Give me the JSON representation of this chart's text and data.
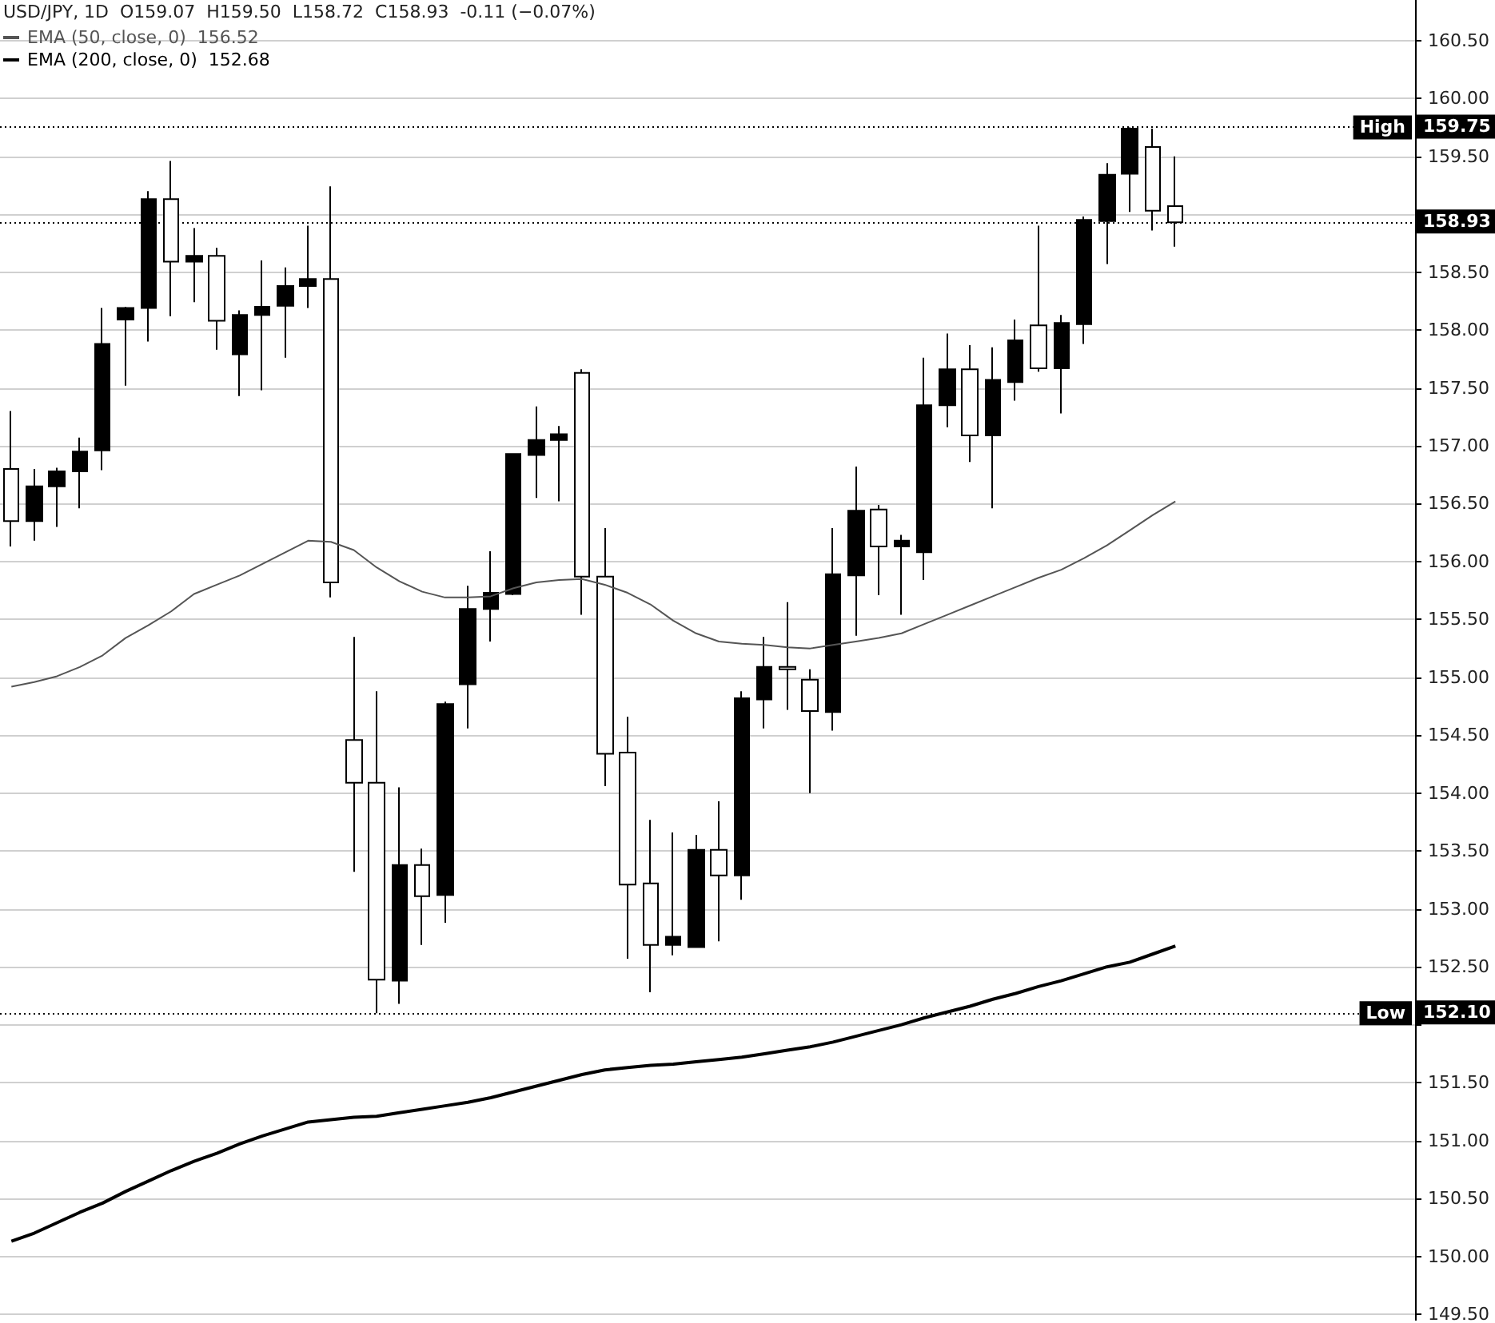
{
  "chart_data": {
    "type": "candlestick",
    "title": "USD/JPY, 1D  O159.07  H159.50  L158.72  C158.93  -0.11 (−0.07%)",
    "categories": [
      null,
      null,
      null,
      null,
      null,
      null,
      null,
      null,
      null,
      null,
      null,
      null,
      null,
      null,
      null,
      null,
      null,
      null,
      null,
      null,
      null,
      null,
      null,
      null,
      null,
      null,
      null,
      null,
      null,
      null,
      null,
      null,
      null,
      null,
      null,
      null,
      null,
      null,
      null,
      null,
      null,
      null,
      null,
      null,
      null,
      null,
      null,
      null,
      null,
      null,
      null,
      null
    ],
    "ohlc": [
      [
        156.8,
        157.3,
        156.13,
        156.35
      ],
      [
        156.35,
        156.8,
        156.18,
        156.65
      ],
      [
        156.65,
        156.81,
        156.3,
        156.78
      ],
      [
        156.78,
        157.07,
        156.46,
        156.95
      ],
      [
        156.96,
        158.19,
        156.79,
        157.88
      ],
      [
        158.09,
        158.2,
        157.52,
        158.19
      ],
      [
        158.19,
        159.2,
        157.9,
        159.13
      ],
      [
        159.13,
        159.46,
        158.12,
        158.59
      ],
      [
        158.59,
        158.88,
        158.24,
        158.64
      ],
      [
        158.64,
        158.71,
        157.83,
        158.08
      ],
      [
        157.79,
        158.17,
        157.43,
        158.13
      ],
      [
        158.13,
        158.6,
        157.48,
        158.2
      ],
      [
        158.21,
        158.54,
        157.76,
        158.38
      ],
      [
        158.38,
        158.9,
        158.19,
        158.44
      ],
      [
        158.44,
        159.24,
        155.69,
        155.82
      ],
      [
        154.46,
        155.35,
        153.32,
        154.09
      ],
      [
        154.09,
        154.88,
        152.1,
        152.39
      ],
      [
        152.38,
        154.05,
        152.18,
        153.38
      ],
      [
        153.38,
        153.52,
        152.69,
        153.11
      ],
      [
        153.12,
        154.79,
        152.88,
        154.77
      ],
      [
        154.94,
        155.79,
        154.56,
        155.59
      ],
      [
        155.59,
        156.09,
        155.31,
        155.73
      ],
      [
        155.72,
        156.93,
        155.71,
        156.93
      ],
      [
        156.92,
        157.34,
        156.55,
        157.05
      ],
      [
        157.05,
        157.17,
        156.52,
        157.1
      ],
      [
        157.63,
        157.66,
        155.54,
        155.87
      ],
      [
        155.87,
        156.29,
        154.06,
        154.34
      ],
      [
        154.35,
        154.66,
        152.57,
        153.21
      ],
      [
        153.22,
        153.77,
        152.28,
        152.69
      ],
      [
        152.69,
        153.66,
        152.6,
        152.76
      ],
      [
        152.67,
        153.64,
        152.67,
        153.51
      ],
      [
        153.51,
        153.93,
        152.72,
        153.29
      ],
      [
        153.29,
        154.88,
        153.08,
        154.82
      ],
      [
        154.81,
        155.35,
        154.56,
        155.09
      ],
      [
        155.09,
        155.65,
        154.72,
        155.07
      ],
      [
        154.98,
        155.07,
        154.0,
        154.71
      ],
      [
        154.7,
        156.29,
        154.54,
        155.89
      ],
      [
        155.88,
        156.82,
        155.36,
        156.44
      ],
      [
        156.45,
        156.49,
        155.71,
        156.13
      ],
      [
        156.13,
        156.23,
        155.54,
        156.18
      ],
      [
        156.08,
        157.76,
        155.84,
        157.35
      ],
      [
        157.35,
        157.97,
        157.16,
        157.66
      ],
      [
        157.66,
        157.87,
        156.86,
        157.09
      ],
      [
        157.09,
        157.85,
        156.46,
        157.57
      ],
      [
        157.55,
        158.09,
        157.39,
        157.91
      ],
      [
        158.04,
        158.9,
        157.64,
        157.67
      ],
      [
        157.67,
        158.13,
        157.28,
        158.06
      ],
      [
        158.05,
        158.98,
        157.88,
        158.95
      ],
      [
        158.94,
        159.44,
        158.57,
        159.34
      ],
      [
        159.35,
        159.75,
        159.02,
        159.74
      ],
      [
        159.58,
        159.74,
        158.86,
        159.03
      ],
      [
        159.07,
        159.5,
        158.72,
        158.93
      ]
    ],
    "colors": [
      "#ffffff",
      "#000000",
      "#000000",
      "#000000",
      "#000000",
      "#000000",
      "#000000",
      "#ffffff",
      "#000000",
      "#ffffff",
      "#000000",
      "#000000",
      "#000000",
      "#000000",
      "#ffffff",
      "#ffffff",
      "#ffffff",
      "#000000",
      "#ffffff",
      "#000000",
      "#000000",
      "#000000",
      "#000000",
      "#000000",
      "#000000",
      "#ffffff",
      "#ffffff",
      "#ffffff",
      "#ffffff",
      "#000000",
      "#000000",
      "#ffffff",
      "#000000",
      "#000000",
      "#ffffff",
      "#ffffff",
      "#000000",
      "#000000",
      "#ffffff",
      "#000000",
      "#000000",
      "#000000",
      "#ffffff",
      "#000000",
      "#000000",
      "#ffffff",
      "#000000",
      "#000000",
      "#000000",
      "#000000",
      "#ffffff",
      "#ffffff"
    ],
    "series": [
      {
        "type": "line",
        "name": "EMA (50, close, 0)  156.52",
        "color": "#555555",
        "values": [
          154.92,
          154.96,
          155.01,
          155.09,
          155.19,
          155.34,
          155.45,
          155.57,
          155.72,
          155.8,
          155.88,
          155.98,
          156.08,
          156.18,
          156.17,
          156.1,
          155.95,
          155.83,
          155.74,
          155.69,
          155.69,
          155.7,
          155.77,
          155.82,
          155.84,
          155.85,
          155.8,
          155.73,
          155.63,
          155.49,
          155.38,
          155.31,
          155.29,
          155.28,
          155.26,
          155.25,
          155.28,
          155.31,
          155.34,
          155.38,
          155.46,
          155.54,
          155.62,
          155.7,
          155.78,
          155.86,
          155.93,
          156.03,
          156.14,
          156.27,
          156.4,
          156.52
        ]
      },
      {
        "type": "line",
        "name": "EMA (200, close, 0)  152.68",
        "color": "#000000",
        "values": [
          150.13,
          150.2,
          150.29,
          150.38,
          150.46,
          150.56,
          150.65,
          150.74,
          150.82,
          150.89,
          150.97,
          151.04,
          151.1,
          151.16,
          151.18,
          151.2,
          151.21,
          151.24,
          151.27,
          151.3,
          151.33,
          151.37,
          151.42,
          151.47,
          151.52,
          151.57,
          151.61,
          151.63,
          151.65,
          151.66,
          151.68,
          151.7,
          151.72,
          151.75,
          151.78,
          151.81,
          151.85,
          151.9,
          151.95,
          152.0,
          152.06,
          152.11,
          152.16,
          152.22,
          152.27,
          152.33,
          152.38,
          152.44,
          152.5,
          152.54,
          152.61,
          152.68
        ]
      }
    ],
    "ylim": [
      149.45,
      160.85
    ],
    "yticks": [
      {
        "value": 149.5,
        "label": "149.50"
      },
      {
        "value": 150,
        "label": "150.00"
      },
      {
        "value": 150.5,
        "label": "150.50"
      },
      {
        "value": 151,
        "label": "151.00"
      },
      {
        "value": 151.5,
        "label": "151.50"
      },
      {
        "value": 152,
        "label": null
      },
      {
        "value": 152.5,
        "label": "152.50"
      },
      {
        "value": 153,
        "label": "153.00"
      },
      {
        "value": 153.5,
        "label": "153.50"
      },
      {
        "value": 154,
        "label": "154.00"
      },
      {
        "value": 154.5,
        "label": "154.50"
      },
      {
        "value": 155,
        "label": "155.00"
      },
      {
        "value": 155.5,
        "label": "155.50"
      },
      {
        "value": 156,
        "label": "156.00"
      },
      {
        "value": 156.5,
        "label": "156.50"
      },
      {
        "value": 157,
        "label": "157.00"
      },
      {
        "value": 157.5,
        "label": "157.50"
      },
      {
        "value": 158,
        "label": "158.00"
      },
      {
        "value": 158.5,
        "label": "158.50"
      },
      {
        "value": 159,
        "label": null
      },
      {
        "value": 159.5,
        "label": "159.50"
      },
      {
        "value": 160,
        "label": "160.00"
      },
      {
        "value": 160.5,
        "label": "160.50"
      }
    ],
    "ref_lines": [
      {
        "axis": "y",
        "value": 159.75,
        "label": "High",
        "color": "#000000",
        "line_style": "dotted"
      },
      {
        "axis": "y",
        "value": 158.93,
        "label": null,
        "color": "#000000",
        "line_style": "dotted"
      },
      {
        "axis": "y",
        "value": 152.1,
        "label": "Low",
        "color": "#000000",
        "line_style": "dotted"
      }
    ],
    "annotations": [
      "159.75",
      "158.93",
      "152.10"
    ],
    "grid": "y",
    "legend": "top left",
    "tick_labels": "y"
  }
}
